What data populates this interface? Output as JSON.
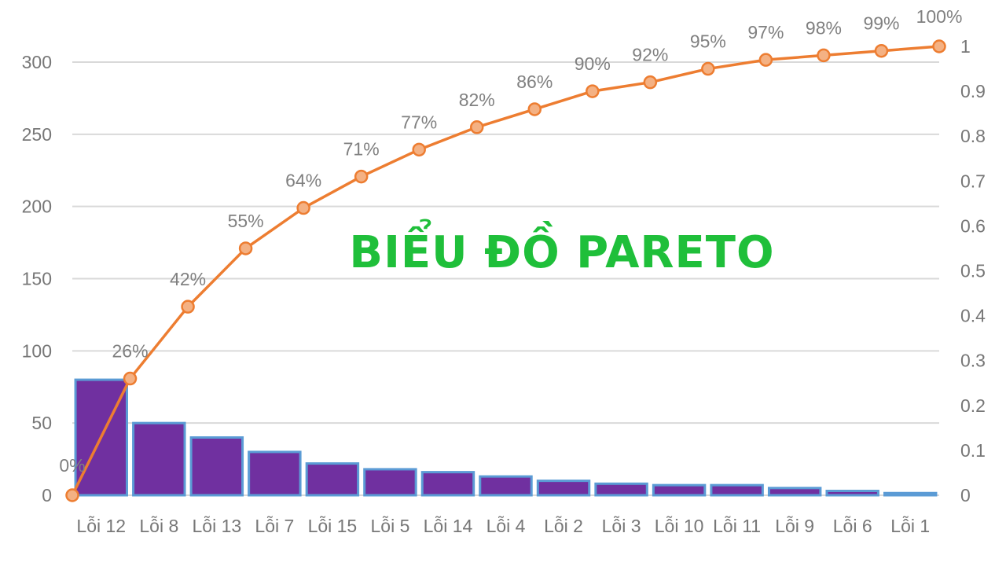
{
  "overlay_title": "BIỂU ĐỒ PARETO",
  "colors": {
    "bar_fill": "#7030a0",
    "bar_stroke": "#5b9bd5",
    "line": "#ed7d31",
    "marker_fill": "#f4b183",
    "grid": "#d9d9d9",
    "title": "#1fbf3a"
  },
  "chart_data": {
    "type": "bar",
    "categories": [
      "Lỗi 12",
      "Lỗi 8",
      "Lỗi 13",
      "Lỗi 7",
      "Lỗi 15",
      "Lỗi 5",
      "Lỗi 14",
      "Lỗi 4",
      "Lỗi 2",
      "Lỗi 3",
      "Lỗi 10",
      "Lỗi 11",
      "Lỗi 9",
      "Lỗi 6",
      "Lỗi 1"
    ],
    "values": [
      80,
      50,
      40,
      30,
      22,
      18,
      16,
      13,
      10,
      8,
      7,
      7,
      5,
      3,
      1.5
    ],
    "line_series": {
      "type": "line",
      "axis": "right",
      "x_positions": [
        "start",
        "Lỗi 12",
        "Lỗi 8",
        "Lỗi 13",
        "Lỗi 7",
        "Lỗi 15",
        "Lỗi 5",
        "Lỗi 14",
        "Lỗi 4",
        "Lỗi 2",
        "Lỗi 3",
        "Lỗi 10",
        "Lỗi 11",
        "Lỗi 9",
        "Lỗi 6",
        "Lỗi 1"
      ],
      "values": [
        0,
        0.26,
        0.42,
        0.55,
        0.64,
        0.71,
        0.77,
        0.82,
        0.86,
        0.9,
        0.92,
        0.95,
        0.97,
        0.98,
        0.99,
        1.0
      ],
      "data_labels": [
        "0%",
        "26%",
        "42%",
        "55%",
        "64%",
        "71%",
        "77%",
        "82%",
        "86%",
        "90%",
        "92%",
        "95%",
        "97%",
        "98%",
        "99%",
        "100%"
      ]
    },
    "y_left": {
      "ylim": [
        0,
        300
      ],
      "ticks": [
        "0",
        "50",
        "100",
        "150",
        "200",
        "250",
        "300"
      ]
    },
    "y_right": {
      "ylim": [
        0,
        1
      ],
      "ticks": [
        "0",
        "0.1",
        "0.2",
        "0.3",
        "0.4",
        "0.5",
        "0.6",
        "0.7",
        "0.8",
        "0.9",
        "1"
      ]
    },
    "grid": true,
    "legend": "none"
  }
}
